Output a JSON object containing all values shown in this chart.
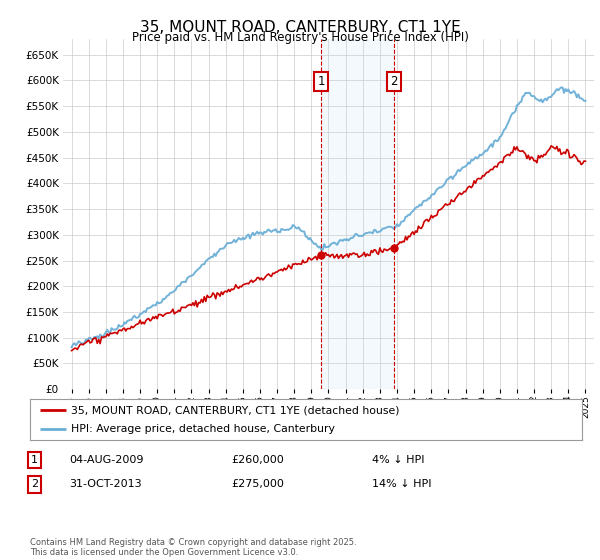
{
  "title": "35, MOUNT ROAD, CANTERBURY, CT1 1YE",
  "subtitle": "Price paid vs. HM Land Registry's House Price Index (HPI)",
  "legend_line1": "35, MOUNT ROAD, CANTERBURY, CT1 1YE (detached house)",
  "legend_line2": "HPI: Average price, detached house, Canterbury",
  "annotation1_date": "04-AUG-2009",
  "annotation1_price": "£260,000",
  "annotation1_hpi": "4% ↓ HPI",
  "annotation1_year": 2009.58,
  "annotation1_price_val": 260000,
  "annotation2_date": "31-OCT-2013",
  "annotation2_price": "£275,000",
  "annotation2_hpi": "14% ↓ HPI",
  "annotation2_year": 2013.83,
  "annotation2_price_val": 275000,
  "footer": "Contains HM Land Registry data © Crown copyright and database right 2025.\nThis data is licensed under the Open Government Licence v3.0.",
  "hpi_color": "#6aaed6",
  "price_color": "#cc0000",
  "annotation_box_color": "#cc0000",
  "shaded_region_color": "#ddeef8",
  "ylim": [
    0,
    680000
  ],
  "yticks": [
    0,
    50000,
    100000,
    150000,
    200000,
    250000,
    300000,
    350000,
    400000,
    450000,
    500000,
    550000,
    600000,
    650000
  ],
  "xlim_start": 1994.5,
  "xlim_end": 2025.5,
  "background_color": "#ffffff",
  "grid_color": "#cccccc"
}
